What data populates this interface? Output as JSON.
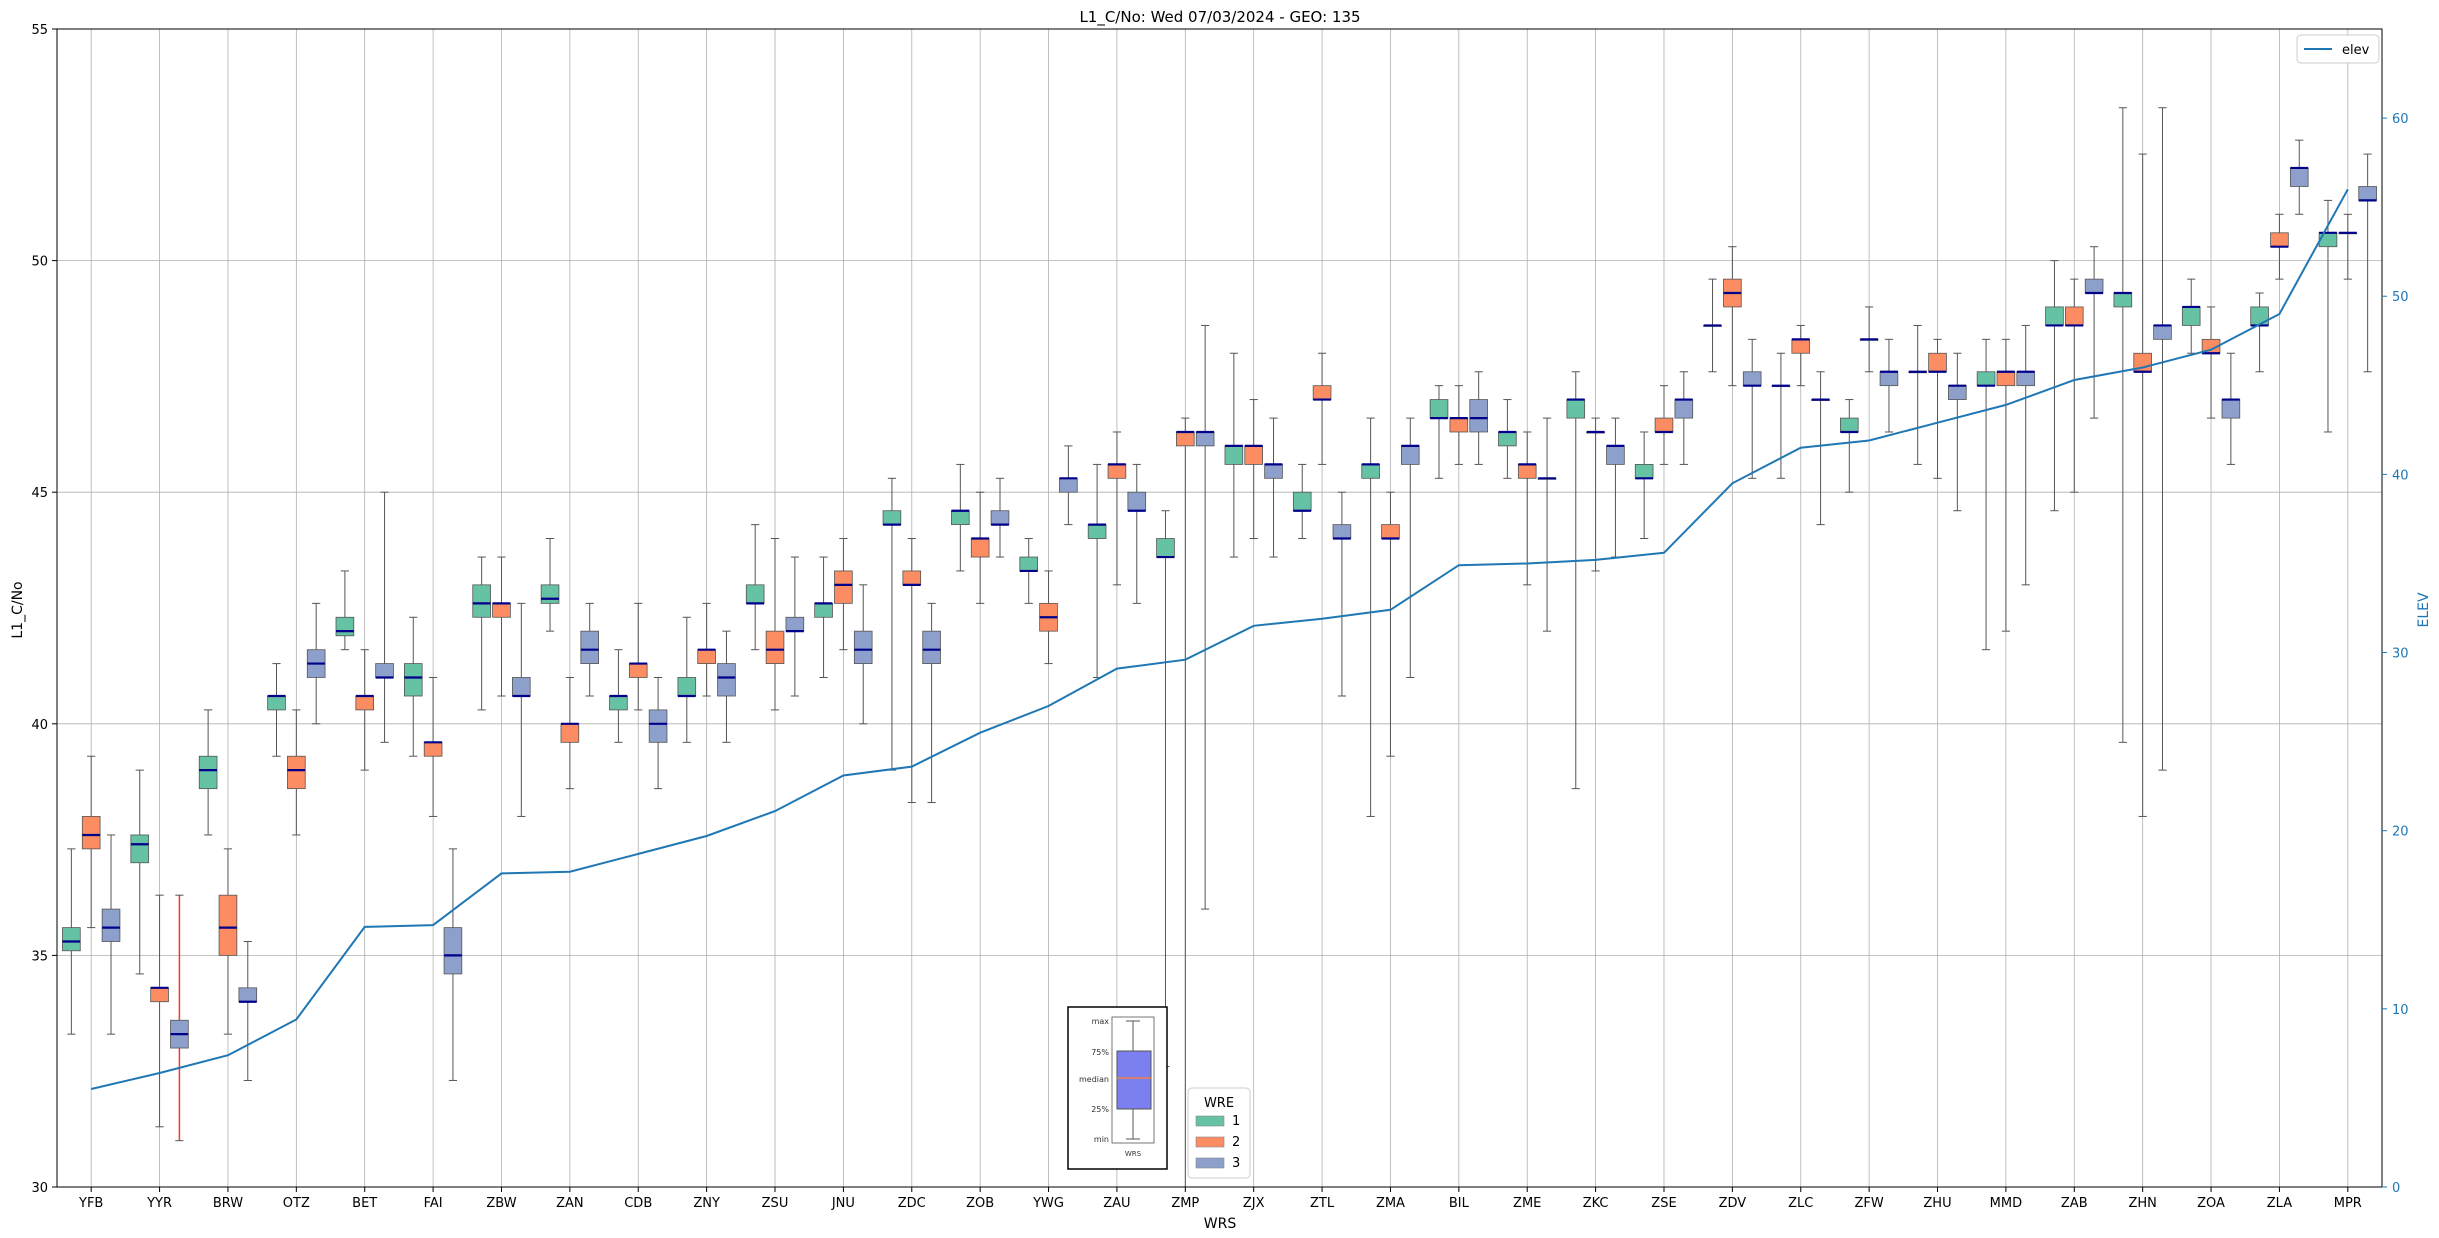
{
  "chart_data": {
    "type": "box",
    "title": "L1_C/No: Wed 07/03/2024 - GEO: 135",
    "xlabel": "WRS",
    "ylabel": "L1_C/No",
    "y2label": "ELEV",
    "ylim": [
      30,
      55
    ],
    "y2lim": [
      0,
      65
    ],
    "yticks": [
      30,
      35,
      40,
      45,
      50,
      55
    ],
    "y2ticks": [
      0,
      10,
      20,
      30,
      40,
      50,
      60
    ],
    "grid": true,
    "colors": {
      "wre1": "#66c2a5",
      "wre2": "#fc8d62",
      "wre3": "#8da0cb",
      "median": "#00008b",
      "elev": "#1f77b4",
      "whisker": "#555555",
      "highlight": "#ff3333"
    },
    "categories": [
      "YFB",
      "YYR",
      "BRW",
      "OTZ",
      "BET",
      "FAI",
      "ZBW",
      "ZAN",
      "CDB",
      "ZNY",
      "ZSU",
      "JNU",
      "ZDC",
      "ZOB",
      "YWG",
      "ZAU",
      "ZMP",
      "ZJX",
      "ZTL",
      "ZMA",
      "BIL",
      "ZME",
      "ZKC",
      "ZSE",
      "ZDV",
      "ZLC",
      "ZFW",
      "ZHU",
      "MMD",
      "ZAB",
      "ZHN",
      "ZOA",
      "ZLA",
      "MPR"
    ],
    "elev": [
      5.5,
      6.4,
      7.4,
      9.4,
      14.6,
      14.7,
      17.6,
      17.7,
      18.7,
      19.7,
      21.1,
      23.1,
      23.6,
      25.5,
      27.0,
      29.1,
      29.6,
      31.5,
      31.9,
      32.4,
      34.9,
      35.0,
      35.2,
      35.6,
      39.5,
      41.5,
      41.9,
      42.9,
      43.9,
      45.3,
      46.0,
      47.0,
      49.0,
      56.0
    ],
    "legend": {
      "title": "WRE",
      "entries": [
        "1",
        "2",
        "3"
      ],
      "line_label": "elev"
    },
    "inset_legend": {
      "labels": [
        "max",
        "75%",
        "median",
        "25%",
        "min"
      ],
      "xlabel": "WRS"
    },
    "series": [
      {
        "name": "1",
        "boxes": [
          {
            "cat": "YFB",
            "min": 33.3,
            "q1": 35.1,
            "med": 35.3,
            "q3": 35.6,
            "max": 37.3
          },
          {
            "cat": "YYR",
            "min": 34.6,
            "q1": 37.0,
            "med": 37.4,
            "q3": 37.6,
            "max": 39.0
          },
          {
            "cat": "BRW",
            "min": 37.6,
            "q1": 38.6,
            "med": 39.0,
            "q3": 39.3,
            "max": 40.3
          },
          {
            "cat": "OTZ",
            "min": 39.3,
            "q1": 40.3,
            "med": 40.6,
            "q3": 40.6,
            "max": 41.3
          },
          {
            "cat": "BET",
            "min": 41.6,
            "q1": 41.9,
            "med": 42.0,
            "q3": 42.3,
            "max": 43.3
          },
          {
            "cat": "FAI",
            "min": 39.3,
            "q1": 40.6,
            "med": 41.0,
            "q3": 41.3,
            "max": 42.3
          },
          {
            "cat": "ZBW",
            "min": 40.3,
            "q1": 42.3,
            "med": 42.6,
            "q3": 43.0,
            "max": 43.6
          },
          {
            "cat": "ZAN",
            "min": 42.0,
            "q1": 42.6,
            "med": 42.7,
            "q3": 43.0,
            "max": 44.0
          },
          {
            "cat": "CDB",
            "min": 39.6,
            "q1": 40.3,
            "med": 40.6,
            "q3": 40.6,
            "max": 41.6
          },
          {
            "cat": "ZNY",
            "min": 39.6,
            "q1": 40.6,
            "med": 40.6,
            "q3": 41.0,
            "max": 42.3
          },
          {
            "cat": "ZSU",
            "min": 41.6,
            "q1": 42.6,
            "med": 42.6,
            "q3": 43.0,
            "max": 44.3
          },
          {
            "cat": "JNU",
            "min": 41.0,
            "q1": 42.3,
            "med": 42.6,
            "q3": 42.6,
            "max": 43.6
          },
          {
            "cat": "ZDC",
            "min": 39.0,
            "q1": 44.3,
            "med": 44.3,
            "q3": 44.6,
            "max": 45.3
          },
          {
            "cat": "ZOB",
            "min": 43.3,
            "q1": 44.3,
            "med": 44.6,
            "q3": 44.6,
            "max": 45.6
          },
          {
            "cat": "YWG",
            "min": 42.6,
            "q1": 43.3,
            "med": 43.3,
            "q3": 43.6,
            "max": 44.0
          },
          {
            "cat": "ZAU",
            "min": 41.0,
            "q1": 44.0,
            "med": 44.3,
            "q3": 44.3,
            "max": 45.6
          },
          {
            "cat": "ZMP",
            "min": 32.6,
            "q1": 43.6,
            "med": 43.6,
            "q3": 44.0,
            "max": 44.6
          },
          {
            "cat": "ZJX",
            "min": 43.6,
            "q1": 45.6,
            "med": 46.0,
            "q3": 46.0,
            "max": 48.0
          },
          {
            "cat": "ZTL",
            "min": 44.0,
            "q1": 44.6,
            "med": 44.6,
            "q3": 45.0,
            "max": 45.6
          },
          {
            "cat": "ZMA",
            "min": 38.0,
            "q1": 45.3,
            "med": 45.6,
            "q3": 45.6,
            "max": 46.6
          },
          {
            "cat": "BIL",
            "min": 45.3,
            "q1": 46.6,
            "med": 46.6,
            "q3": 47.0,
            "max": 47.3
          },
          {
            "cat": "ZME",
            "min": 45.3,
            "q1": 46.0,
            "med": 46.3,
            "q3": 46.3,
            "max": 47.0
          },
          {
            "cat": "ZKC",
            "min": 38.6,
            "q1": 46.6,
            "med": 47.0,
            "q3": 47.0,
            "max": 47.6
          },
          {
            "cat": "ZSE",
            "min": 44.0,
            "q1": 45.3,
            "med": 45.3,
            "q3": 45.6,
            "max": 46.3
          },
          {
            "cat": "ZDV",
            "min": 47.6,
            "q1": 48.6,
            "med": 48.6,
            "q3": 48.6,
            "max": 49.6
          },
          {
            "cat": "ZLC",
            "min": 45.3,
            "q1": 47.3,
            "med": 47.3,
            "q3": 47.3,
            "max": 48.0
          },
          {
            "cat": "ZFW",
            "min": 45.0,
            "q1": 46.3,
            "med": 46.3,
            "q3": 46.6,
            "max": 47.0
          },
          {
            "cat": "ZHU",
            "min": 45.6,
            "q1": 47.6,
            "med": 47.6,
            "q3": 47.6,
            "max": 48.6
          },
          {
            "cat": "MMD",
            "min": 41.6,
            "q1": 47.3,
            "med": 47.3,
            "q3": 47.6,
            "max": 48.3
          },
          {
            "cat": "ZAB",
            "min": 44.6,
            "q1": 48.6,
            "med": 48.6,
            "q3": 49.0,
            "max": 50.0
          },
          {
            "cat": "ZHN",
            "min": 39.6,
            "q1": 49.0,
            "med": 49.3,
            "q3": 49.3,
            "max": 53.3
          },
          {
            "cat": "ZOA",
            "min": 48.0,
            "q1": 48.6,
            "med": 49.0,
            "q3": 49.0,
            "max": 49.6
          },
          {
            "cat": "ZLA",
            "min": 47.6,
            "q1": 48.6,
            "med": 48.6,
            "q3": 49.0,
            "max": 49.3
          },
          {
            "cat": "MPR",
            "min": 46.3,
            "q1": 50.3,
            "med": 50.6,
            "q3": 50.6,
            "max": 51.3
          }
        ]
      },
      {
        "name": "2",
        "boxes": [
          {
            "cat": "YFB",
            "min": 35.6,
            "q1": 37.3,
            "med": 37.6,
            "q3": 38.0,
            "max": 39.3
          },
          {
            "cat": "YYR",
            "min": 31.3,
            "q1": 34.0,
            "med": 34.3,
            "q3": 34.3,
            "max": 36.3
          },
          {
            "cat": "BRW",
            "min": 33.3,
            "q1": 35.0,
            "med": 35.6,
            "q3": 36.3,
            "max": 37.3
          },
          {
            "cat": "OTZ",
            "min": 37.6,
            "q1": 38.6,
            "med": 39.0,
            "q3": 39.3,
            "max": 40.3
          },
          {
            "cat": "BET",
            "min": 39.0,
            "q1": 40.3,
            "med": 40.6,
            "q3": 40.6,
            "max": 41.6
          },
          {
            "cat": "FAI",
            "min": 38.0,
            "q1": 39.3,
            "med": 39.6,
            "q3": 39.6,
            "max": 41.0
          },
          {
            "cat": "ZBW",
            "min": 40.6,
            "q1": 42.3,
            "med": 42.6,
            "q3": 42.6,
            "max": 43.6
          },
          {
            "cat": "ZAN",
            "min": 38.6,
            "q1": 39.6,
            "med": 40.0,
            "q3": 40.0,
            "max": 41.0
          },
          {
            "cat": "CDB",
            "min": 40.3,
            "q1": 41.0,
            "med": 41.3,
            "q3": 41.3,
            "max": 42.6
          },
          {
            "cat": "ZNY",
            "min": 40.6,
            "q1": 41.3,
            "med": 41.6,
            "q3": 41.6,
            "max": 42.6
          },
          {
            "cat": "ZSU",
            "min": 40.3,
            "q1": 41.3,
            "med": 41.6,
            "q3": 42.0,
            "max": 44.0
          },
          {
            "cat": "JNU",
            "min": 41.6,
            "q1": 42.6,
            "med": 43.0,
            "q3": 43.3,
            "max": 44.0
          },
          {
            "cat": "ZDC",
            "min": 38.3,
            "q1": 43.0,
            "med": 43.0,
            "q3": 43.3,
            "max": 44.0
          },
          {
            "cat": "ZOB",
            "min": 42.6,
            "q1": 43.6,
            "med": 44.0,
            "q3": 44.0,
            "max": 45.0
          },
          {
            "cat": "YWG",
            "min": 41.3,
            "q1": 42.0,
            "med": 42.3,
            "q3": 42.6,
            "max": 43.3
          },
          {
            "cat": "ZAU",
            "min": 43.0,
            "q1": 45.3,
            "med": 45.6,
            "q3": 45.6,
            "max": 46.3
          },
          {
            "cat": "ZMP",
            "min": 30.0,
            "q1": 46.0,
            "med": 46.3,
            "q3": 46.3,
            "max": 46.6
          },
          {
            "cat": "ZJX",
            "min": 44.0,
            "q1": 45.6,
            "med": 46.0,
            "q3": 46.0,
            "max": 47.0
          },
          {
            "cat": "ZTL",
            "min": 45.6,
            "q1": 47.0,
            "med": 47.0,
            "q3": 47.3,
            "max": 48.0
          },
          {
            "cat": "ZMA",
            "min": 39.3,
            "q1": 44.0,
            "med": 44.0,
            "q3": 44.3,
            "max": 45.0
          },
          {
            "cat": "BIL",
            "min": 45.6,
            "q1": 46.3,
            "med": 46.6,
            "q3": 46.6,
            "max": 47.3
          },
          {
            "cat": "ZME",
            "min": 43.0,
            "q1": 45.3,
            "med": 45.6,
            "q3": 45.6,
            "max": 46.3
          },
          {
            "cat": "ZKC",
            "min": 43.3,
            "q1": 46.3,
            "med": 46.3,
            "q3": 46.3,
            "max": 46.6
          },
          {
            "cat": "ZSE",
            "min": 45.6,
            "q1": 46.3,
            "med": 46.3,
            "q3": 46.6,
            "max": 47.3
          },
          {
            "cat": "ZDV",
            "min": 47.3,
            "q1": 49.0,
            "med": 49.3,
            "q3": 49.6,
            "max": 50.3
          },
          {
            "cat": "ZLC",
            "min": 47.3,
            "q1": 48.0,
            "med": 48.3,
            "q3": 48.3,
            "max": 48.6
          },
          {
            "cat": "ZFW",
            "min": 47.6,
            "q1": 48.3,
            "med": 48.3,
            "q3": 48.3,
            "max": 49.0
          },
          {
            "cat": "ZHU",
            "min": 45.3,
            "q1": 47.6,
            "med": 47.6,
            "q3": 48.0,
            "max": 48.3
          },
          {
            "cat": "MMD",
            "min": 42.0,
            "q1": 47.3,
            "med": 47.6,
            "q3": 47.6,
            "max": 48.3
          },
          {
            "cat": "ZAB",
            "min": 45.0,
            "q1": 48.6,
            "med": 48.6,
            "q3": 49.0,
            "max": 49.6
          },
          {
            "cat": "ZHN",
            "min": 38.0,
            "q1": 47.6,
            "med": 47.6,
            "q3": 48.0,
            "max": 52.3
          },
          {
            "cat": "ZOA",
            "min": 46.6,
            "q1": 48.0,
            "med": 48.0,
            "q3": 48.3,
            "max": 49.0
          },
          {
            "cat": "ZLA",
            "min": 49.6,
            "q1": 50.3,
            "med": 50.3,
            "q3": 50.6,
            "max": 51.0
          },
          {
            "cat": "MPR",
            "min": 49.6,
            "q1": 50.6,
            "med": 50.6,
            "q3": 50.6,
            "max": 51.0
          }
        ]
      },
      {
        "name": "3",
        "boxes": [
          {
            "cat": "YFB",
            "min": 33.3,
            "q1": 35.3,
            "med": 35.6,
            "q3": 36.0,
            "max": 37.6
          },
          {
            "cat": "YYR",
            "min": 31.0,
            "q1": 33.0,
            "med": 33.3,
            "q3": 33.6,
            "max": 36.3,
            "highlight": true
          },
          {
            "cat": "BRW",
            "min": 32.3,
            "q1": 34.0,
            "med": 34.0,
            "q3": 34.3,
            "max": 35.3
          },
          {
            "cat": "OTZ",
            "min": 40.0,
            "q1": 41.0,
            "med": 41.3,
            "q3": 41.6,
            "max": 42.6
          },
          {
            "cat": "BET",
            "min": 39.6,
            "q1": 41.0,
            "med": 41.0,
            "q3": 41.3,
            "max": 45.0
          },
          {
            "cat": "FAI",
            "min": 32.3,
            "q1": 34.6,
            "med": 35.0,
            "q3": 35.6,
            "max": 37.3
          },
          {
            "cat": "ZBW",
            "min": 38.0,
            "q1": 40.6,
            "med": 40.6,
            "q3": 41.0,
            "max": 42.6
          },
          {
            "cat": "ZAN",
            "min": 40.6,
            "q1": 41.3,
            "med": 41.6,
            "q3": 42.0,
            "max": 42.6
          },
          {
            "cat": "CDB",
            "min": 38.6,
            "q1": 39.6,
            "med": 40.0,
            "q3": 40.3,
            "max": 41.0
          },
          {
            "cat": "ZNY",
            "min": 39.6,
            "q1": 40.6,
            "med": 41.0,
            "q3": 41.3,
            "max": 42.0
          },
          {
            "cat": "ZSU",
            "min": 40.6,
            "q1": 42.0,
            "med": 42.0,
            "q3": 42.3,
            "max": 43.6
          },
          {
            "cat": "JNU",
            "min": 40.0,
            "q1": 41.3,
            "med": 41.6,
            "q3": 42.0,
            "max": 43.0
          },
          {
            "cat": "ZDC",
            "min": 38.3,
            "q1": 41.3,
            "med": 41.6,
            "q3": 42.0,
            "max": 42.6
          },
          {
            "cat": "ZOB",
            "min": 43.6,
            "q1": 44.3,
            "med": 44.3,
            "q3": 44.6,
            "max": 45.3
          },
          {
            "cat": "YWG",
            "min": 44.3,
            "q1": 45.0,
            "med": 45.3,
            "q3": 45.3,
            "max": 46.0
          },
          {
            "cat": "ZAU",
            "min": 42.6,
            "q1": 44.6,
            "med": 44.6,
            "q3": 45.0,
            "max": 45.6
          },
          {
            "cat": "ZMP",
            "min": 36.0,
            "q1": 46.0,
            "med": 46.3,
            "q3": 46.3,
            "max": 48.6
          },
          {
            "cat": "ZJX",
            "min": 43.6,
            "q1": 45.3,
            "med": 45.6,
            "q3": 45.6,
            "max": 46.6
          },
          {
            "cat": "ZTL",
            "min": 40.6,
            "q1": 44.0,
            "med": 44.0,
            "q3": 44.3,
            "max": 45.0
          },
          {
            "cat": "ZMA",
            "min": 41.0,
            "q1": 45.6,
            "med": 46.0,
            "q3": 46.0,
            "max": 46.6
          },
          {
            "cat": "BIL",
            "min": 45.6,
            "q1": 46.3,
            "med": 46.6,
            "q3": 47.0,
            "max": 47.6
          },
          {
            "cat": "ZME",
            "min": 42.0,
            "q1": 45.3,
            "med": 45.3,
            "q3": 45.3,
            "max": 46.6
          },
          {
            "cat": "ZKC",
            "min": 43.6,
            "q1": 45.6,
            "med": 46.0,
            "q3": 46.0,
            "max": 46.6
          },
          {
            "cat": "ZSE",
            "min": 45.6,
            "q1": 46.6,
            "med": 47.0,
            "q3": 47.0,
            "max": 47.6
          },
          {
            "cat": "ZDV",
            "min": 45.3,
            "q1": 47.3,
            "med": 47.3,
            "q3": 47.6,
            "max": 48.3
          },
          {
            "cat": "ZLC",
            "min": 44.3,
            "q1": 47.0,
            "med": 47.0,
            "q3": 47.0,
            "max": 47.6
          },
          {
            "cat": "ZFW",
            "min": 46.3,
            "q1": 47.3,
            "med": 47.6,
            "q3": 47.6,
            "max": 48.3
          },
          {
            "cat": "ZHU",
            "min": 44.6,
            "q1": 47.0,
            "med": 47.3,
            "q3": 47.3,
            "max": 48.0
          },
          {
            "cat": "MMD",
            "min": 43.0,
            "q1": 47.3,
            "med": 47.6,
            "q3": 47.6,
            "max": 48.6
          },
          {
            "cat": "ZAB",
            "min": 46.6,
            "q1": 49.3,
            "med": 49.3,
            "q3": 49.6,
            "max": 50.3
          },
          {
            "cat": "ZHN",
            "min": 39.0,
            "q1": 48.3,
            "med": 48.6,
            "q3": 48.6,
            "max": 53.3
          },
          {
            "cat": "ZOA",
            "min": 45.6,
            "q1": 46.6,
            "med": 47.0,
            "q3": 47.0,
            "max": 48.0
          },
          {
            "cat": "ZLA",
            "min": 51.0,
            "q1": 51.6,
            "med": 52.0,
            "q3": 52.0,
            "max": 52.6
          },
          {
            "cat": "MPR",
            "min": 47.6,
            "q1": 51.3,
            "med": 51.3,
            "q3": 51.6,
            "max": 52.3
          }
        ]
      }
    ]
  }
}
